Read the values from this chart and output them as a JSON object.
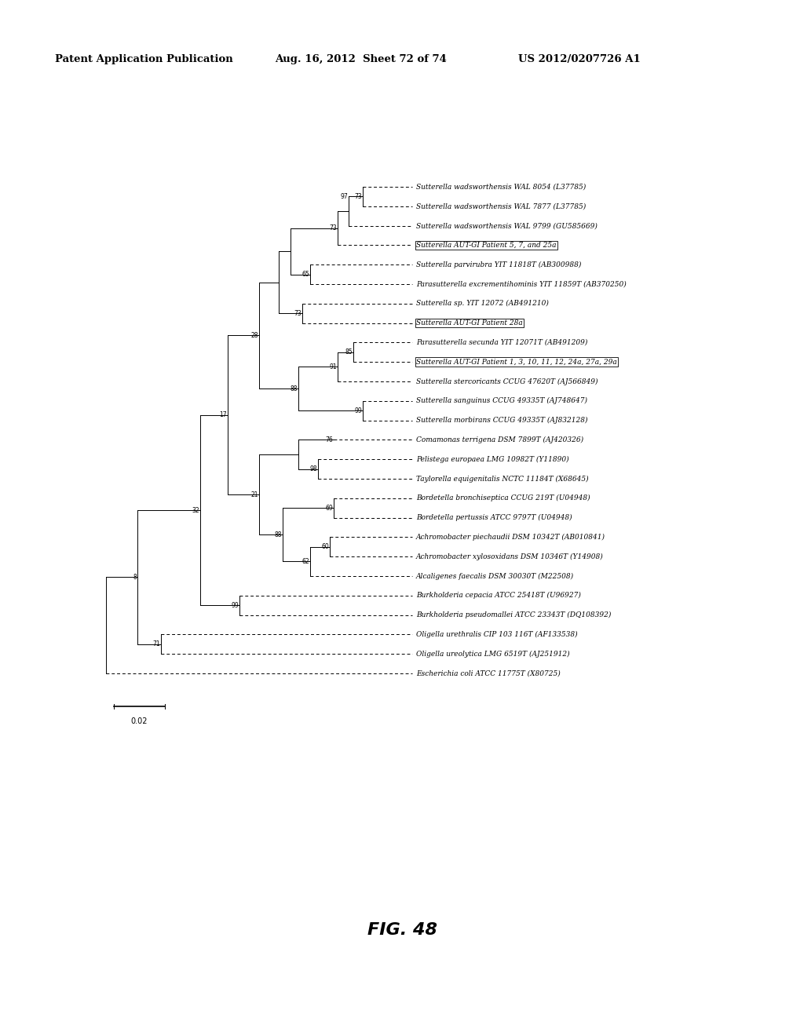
{
  "title_left": "Patent Application Publication",
  "title_mid": "Aug. 16, 2012  Sheet 72 of 74",
  "title_right": "US 2012/0207726 A1",
  "fig_label": "FIG. 48",
  "scale_bar_label": "0.02",
  "taxa": [
    {
      "label": "Sutterella wadsworthensis WAL 8054 (L37785)",
      "boxed": false
    },
    {
      "label": "Sutterella wadsworthensis WAL 7877 (L37785)",
      "boxed": false
    },
    {
      "label": "Sutterella wadsworthensis WAL 9799 (GU585669)",
      "boxed": false
    },
    {
      "label": "Sutterella AUT-GI Patient 5, 7, and 25a",
      "boxed": true
    },
    {
      "label": "Sutterella parvirubra YIT 11818T (AB300988)",
      "boxed": false
    },
    {
      "label": "Parasutterella excrementihominis YIT 11859T (AB370250)",
      "boxed": false
    },
    {
      "label": "Sutterella sp. YIT 12072 (AB491210)",
      "boxed": false
    },
    {
      "label": "Sutterella AUT-GI Patient 28a",
      "boxed": true
    },
    {
      "label": "Parasutterella secunda YIT 12071T (AB491209)",
      "boxed": false
    },
    {
      "label": "Sutterella AUT-GI Patient 1, 3, 10, 11, 12, 24a, 27a, 29a",
      "boxed": true
    },
    {
      "label": "Sutterella stercoricants CCUG 47620T (AJ566849)",
      "boxed": false
    },
    {
      "label": "Sutterella sanguinus CCUG 49335T (AJ748647)",
      "boxed": false
    },
    {
      "label": "Sutterella morbirans CCUG 49335T (AJ832128)",
      "boxed": false
    },
    {
      "label": "Comamonas terrigena DSM 7899T (AJ420326)",
      "boxed": false
    },
    {
      "label": "Pelistega europaea LMG 10982T (Y11890)",
      "boxed": false
    },
    {
      "label": "Taylorella equigenitalis NCTC 11184T (X68645)",
      "boxed": false
    },
    {
      "label": "Bordetella bronchiseptica CCUG 219T (U04948)",
      "boxed": false
    },
    {
      "label": "Bordetella pertussis ATCC 9797T (U04948)",
      "boxed": false
    },
    {
      "label": "Achromobacter piechaudii DSM 10342T (AB010841)",
      "boxed": false
    },
    {
      "label": "Achromobacter xylosoxidans DSM 10346T (Y14908)",
      "boxed": false
    },
    {
      "label": "Alcaligenes faecalis DSM 30030T (M22508)",
      "boxed": false
    },
    {
      "label": "Burkholderia cepacia ATCC 25418T (U96927)",
      "boxed": false
    },
    {
      "label": "Burkholderia pseudomallei ATCC 23343T (DQ108392)",
      "boxed": false
    },
    {
      "label": "Oligella urethralis CIP 103 116T (AF133538)",
      "boxed": false
    },
    {
      "label": "Oligella ureolytica LMG 6519T (AJ251912)",
      "boxed": false
    },
    {
      "label": "Escherichia coli ATCC 11775T (X80725)",
      "boxed": false
    }
  ],
  "tree_color": "#000000",
  "background_color": "#ffffff",
  "header_fontsize": 9.5,
  "taxa_fontsize": 6.5,
  "bs_fontsize": 5.5,
  "fig_label_fontsize": 16
}
